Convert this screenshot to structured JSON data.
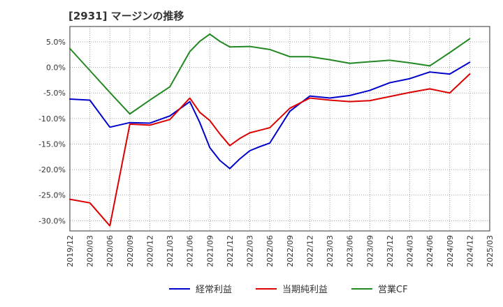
{
  "chart_data": {
    "type": "line",
    "title": "[2931]  マージンの推移",
    "xlabel": "",
    "ylabel": "",
    "x": [
      "2019/12",
      "2020/03",
      "2020/06",
      "2020/09",
      "2020/12",
      "2021/03",
      "2021/06",
      "2021/09",
      "2021/12",
      "2022/03",
      "2022/06",
      "2022/09",
      "2022/12",
      "2023/03",
      "2023/06",
      "2023/09",
      "2023/12",
      "2024/03",
      "2024/06",
      "2024/09",
      "2024/12",
      "2025/03"
    ],
    "ylim": [
      -32,
      8
    ],
    "yticks": [
      5,
      0,
      -5,
      -10,
      -15,
      -20,
      -25,
      -30
    ],
    "ytick_labels": [
      "5.0%",
      "0.0%",
      "-5.0%",
      "-10.0%",
      "-15.0%",
      "-20.0%",
      "-25.0%",
      "-30.0%"
    ],
    "grid": true,
    "legend_position": "bottom",
    "series": [
      {
        "name": "経常利益",
        "color": "#0000cc",
        "points": [
          [
            0,
            -6.2
          ],
          [
            1,
            -6.4
          ],
          [
            2,
            -11.7
          ],
          [
            3,
            -10.8
          ],
          [
            4,
            -10.9
          ],
          [
            5,
            -9.5
          ],
          [
            6,
            -6.7
          ],
          [
            6.5,
            -10.8
          ],
          [
            7,
            -15.7
          ],
          [
            7.5,
            -18.2
          ],
          [
            8,
            -19.8
          ],
          [
            8.5,
            -17.9
          ],
          [
            9,
            -16.3
          ],
          [
            9.5,
            -15.5
          ],
          [
            10,
            -14.8
          ],
          [
            11,
            -8.6
          ],
          [
            12,
            -5.6
          ],
          [
            13,
            -6.0
          ],
          [
            14,
            -5.5
          ],
          [
            15,
            -4.5
          ],
          [
            16,
            -3.0
          ],
          [
            17,
            -2.2
          ],
          [
            18,
            -0.9
          ],
          [
            19,
            -1.3
          ],
          [
            20,
            1.0
          ]
        ]
      },
      {
        "name": "当期純利益",
        "color": "#dd0000",
        "points": [
          [
            0,
            -25.8
          ],
          [
            1,
            -26.5
          ],
          [
            2,
            -31.0
          ],
          [
            3,
            -11.1
          ],
          [
            4,
            -11.3
          ],
          [
            5,
            -10.2
          ],
          [
            6,
            -6.0
          ],
          [
            6.5,
            -8.8
          ],
          [
            7,
            -10.4
          ],
          [
            7.5,
            -13.0
          ],
          [
            8,
            -15.3
          ],
          [
            8.5,
            -13.9
          ],
          [
            9,
            -12.8
          ],
          [
            9.5,
            -12.3
          ],
          [
            10,
            -11.8
          ],
          [
            11,
            -8.0
          ],
          [
            12,
            -6.0
          ],
          [
            13,
            -6.4
          ],
          [
            14,
            -6.7
          ],
          [
            15,
            -6.5
          ],
          [
            16,
            -5.7
          ],
          [
            17,
            -4.9
          ],
          [
            18,
            -4.2
          ],
          [
            19,
            -5.0
          ],
          [
            20,
            -1.3
          ]
        ]
      },
      {
        "name": "営業CF",
        "color": "#228822",
        "points": [
          [
            0,
            3.7
          ],
          [
            1,
            -0.6
          ],
          [
            2,
            -4.9
          ],
          [
            3,
            -9.1
          ],
          [
            4,
            -6.4
          ],
          [
            5,
            -3.8
          ],
          [
            6,
            3.1
          ],
          [
            6.5,
            5.1
          ],
          [
            7,
            6.5
          ],
          [
            7.5,
            5.1
          ],
          [
            8,
            4.0
          ],
          [
            9,
            4.1
          ],
          [
            10,
            3.5
          ],
          [
            11,
            2.1
          ],
          [
            12,
            2.1
          ],
          [
            13,
            1.5
          ],
          [
            14,
            0.8
          ],
          [
            15,
            1.1
          ],
          [
            16,
            1.4
          ],
          [
            17,
            0.9
          ],
          [
            18,
            0.3
          ],
          [
            19,
            2.9
          ],
          [
            20,
            5.6
          ]
        ]
      }
    ]
  }
}
